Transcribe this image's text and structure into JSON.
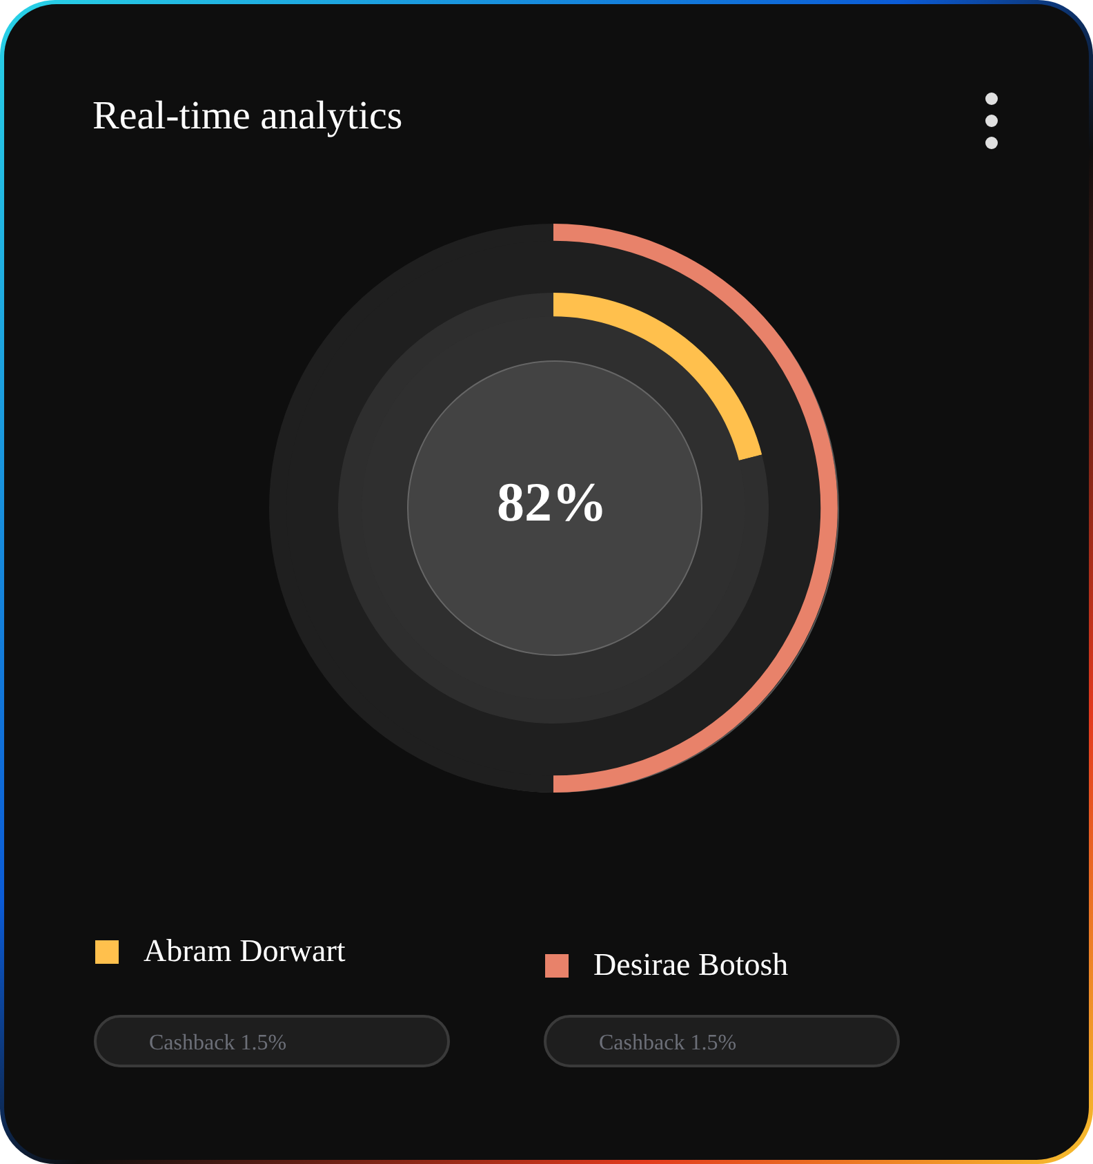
{
  "chart_data": {
    "type": "donut",
    "title": "Real-time analytics",
    "series": [
      {
        "name": "Abram Dorwart",
        "colors": [
          "#ffc04d",
          "#2e2e2e"
        ],
        "values": [
          21,
          79
        ]
      },
      {
        "name": "Desirae Botosh",
        "colors": [
          "#e8826a",
          "#1f1f1f"
        ],
        "values": [
          50,
          50
        ]
      }
    ],
    "annotations": [
      "82%",
      "Cashback 1.5%",
      "Cashback 1.5%"
    ],
    "legend": "bottom"
  }
}
